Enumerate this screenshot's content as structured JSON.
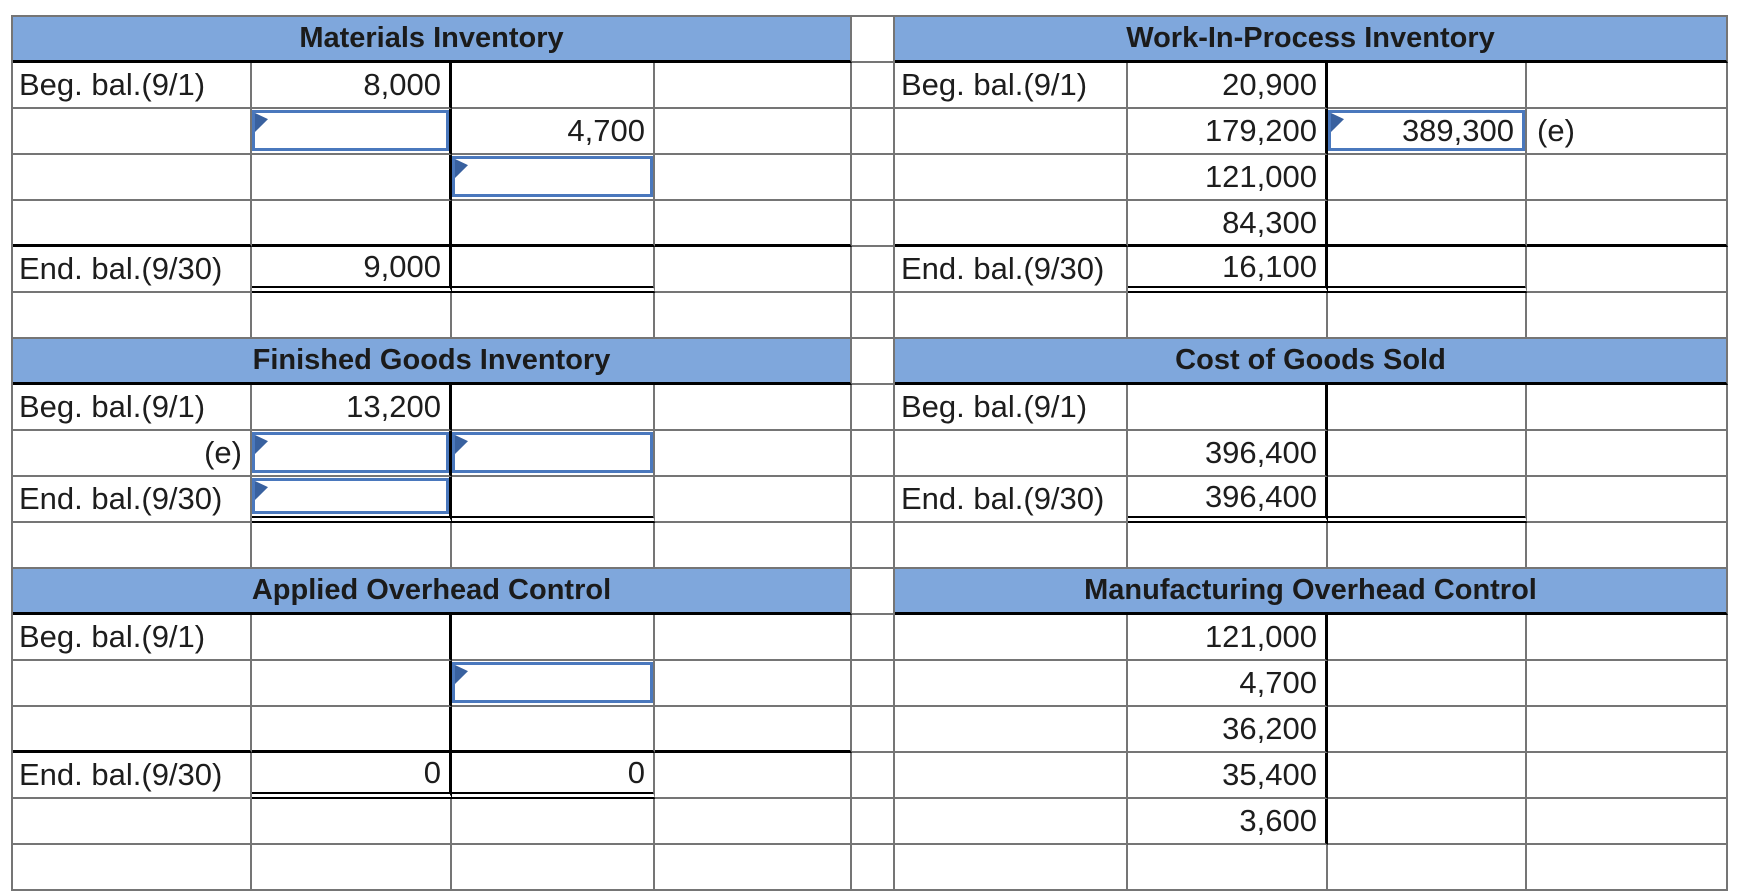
{
  "colors": {
    "header_bg": "#7fa7dc",
    "grid_line": "#757575",
    "strong_line": "#000000",
    "input_border": "#4a78bd",
    "input_marker": "#39619f",
    "text": "#1d1d1d"
  },
  "accounts": [
    {
      "id": "materials-inventory",
      "title": "Materials Inventory",
      "side": "left",
      "rows": [
        {
          "label": "Beg. bal.(9/1)",
          "debit": "8,000",
          "credit": "",
          "note": ""
        },
        {
          "label": "",
          "debit": "",
          "credit": "4,700",
          "note": "",
          "debit_input": true
        },
        {
          "label": "",
          "debit": "",
          "credit": "",
          "note": "",
          "credit_input": true
        },
        {
          "label": "",
          "debit": "",
          "credit": "",
          "note": ""
        },
        {
          "label": "End. bal.(9/30)",
          "debit": "9,000",
          "credit": "",
          "note": "",
          "thick_top": true,
          "double_under": true
        },
        {
          "label": "",
          "debit": "",
          "credit": "",
          "note": "",
          "trailing": true
        }
      ]
    },
    {
      "id": "work-in-process-inventory",
      "title": "Work-In-Process Inventory",
      "side": "right",
      "rows": [
        {
          "label": "Beg. bal.(9/1)",
          "debit": "20,900",
          "credit": "",
          "note": ""
        },
        {
          "label": "",
          "debit": "179,200",
          "credit": "389,300",
          "note": "(e)",
          "credit_input": true
        },
        {
          "label": "",
          "debit": "121,000",
          "credit": "",
          "note": ""
        },
        {
          "label": "",
          "debit": "84,300",
          "credit": "",
          "note": ""
        },
        {
          "label": "End. bal.(9/30)",
          "debit": "16,100",
          "credit": "",
          "note": "",
          "thick_top": true,
          "double_under": true
        },
        {
          "label": "",
          "debit": "",
          "credit": "",
          "note": "",
          "trailing": true
        }
      ]
    },
    {
      "id": "finished-goods-inventory",
      "title": "Finished Goods Inventory",
      "side": "left",
      "rows": [
        {
          "label": "Beg. bal.(9/1)",
          "debit": "13,200",
          "credit": "",
          "note": ""
        },
        {
          "label": "(e)",
          "debit": "",
          "credit": "",
          "note": "",
          "label_right": true,
          "debit_input": true,
          "credit_input": true
        },
        {
          "label": "End. bal.(9/30)",
          "debit": "",
          "credit": "",
          "note": "",
          "debit_input": true,
          "double_under": true
        },
        {
          "label": "",
          "debit": "",
          "credit": "",
          "note": "",
          "trailing": true
        }
      ]
    },
    {
      "id": "cost-of-goods-sold",
      "title": "Cost of Goods Sold",
      "side": "right",
      "rows": [
        {
          "label": "Beg. bal.(9/1)",
          "debit": "",
          "credit": "",
          "note": ""
        },
        {
          "label": "",
          "debit": "396,400",
          "credit": "",
          "note": ""
        },
        {
          "label": "End. bal.(9/30)",
          "debit": "396,400",
          "credit": "",
          "note": "",
          "double_under": true
        },
        {
          "label": "",
          "debit": "",
          "credit": "",
          "note": "",
          "trailing": true
        }
      ]
    },
    {
      "id": "applied-overhead-control",
      "title": "Applied Overhead Control",
      "side": "left",
      "rows": [
        {
          "label": "Beg. bal.(9/1)",
          "debit": "",
          "credit": "",
          "note": ""
        },
        {
          "label": "",
          "debit": "",
          "credit": "",
          "note": "",
          "credit_input": true
        },
        {
          "label": "",
          "debit": "",
          "credit": "",
          "note": ""
        },
        {
          "label": "End. bal.(9/30)",
          "debit": "0",
          "credit": "0",
          "note": "",
          "thick_top": true,
          "double_under": true
        },
        {
          "label": "",
          "debit": "",
          "credit": "",
          "note": "",
          "trailing": true
        },
        {
          "label": "",
          "debit": "",
          "credit": "",
          "note": "",
          "trailing": true
        }
      ]
    },
    {
      "id": "manufacturing-overhead-control",
      "title": "Manufacturing Overhead Control",
      "side": "right",
      "rows": [
        {
          "label": "",
          "debit": "121,000",
          "credit": "",
          "note": ""
        },
        {
          "label": "",
          "debit": "4,700",
          "credit": "",
          "note": ""
        },
        {
          "label": "",
          "debit": "36,200",
          "credit": "",
          "note": ""
        },
        {
          "label": "",
          "debit": "35,400",
          "credit": "",
          "note": ""
        },
        {
          "label": "",
          "debit": "3,600",
          "credit": "",
          "note": ""
        },
        {
          "label": "",
          "debit": "",
          "credit": "",
          "note": "",
          "trailing": true
        }
      ]
    }
  ]
}
